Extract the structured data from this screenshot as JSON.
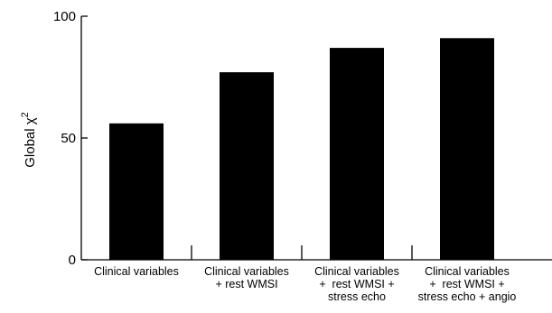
{
  "chart_data": {
    "type": "bar",
    "categories": [
      [
        "Clinical variables"
      ],
      [
        "Clinical variables",
        "+ rest WMSI"
      ],
      [
        "Clinical variables",
        "+  rest WMSI +",
        "stress echo"
      ],
      [
        "Clinical variables",
        "+  rest WMSI +",
        "stress echo + angio"
      ]
    ],
    "values": [
      56,
      77,
      87,
      91
    ],
    "ylabel": "Global χ",
    "ylabel_superscript": "2",
    "ylim": [
      0,
      100
    ],
    "yticks": [
      0,
      50,
      100
    ],
    "ytick_labels": [
      "0",
      "50",
      "100"
    ],
    "grid": false,
    "bar_color": "#000000"
  }
}
